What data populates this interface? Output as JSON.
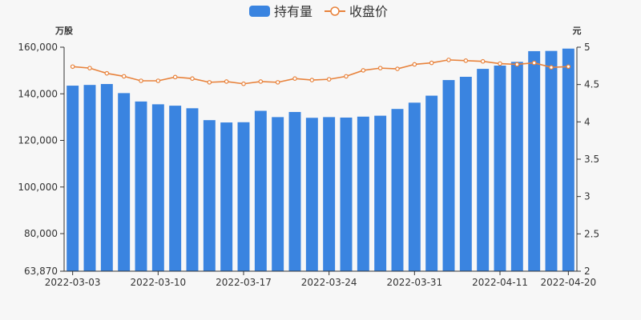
{
  "chart_data": {
    "type": "bar+line",
    "legend": [
      {
        "label": "持有量",
        "type": "bar",
        "color": "#3a84e0"
      },
      {
        "label": "收盘价",
        "type": "line",
        "color": "#e8823b"
      }
    ],
    "left_axis": {
      "unit": "万股",
      "min": 63870,
      "max": 160000,
      "ticks": [
        63870,
        80000,
        100000,
        120000,
        140000,
        160000
      ],
      "tick_labels": [
        "63,870",
        "80,000",
        "100,000",
        "120,000",
        "140,000",
        "160,000"
      ]
    },
    "right_axis": {
      "unit": "元",
      "min": 2,
      "max": 5,
      "ticks": [
        2,
        2.5,
        3,
        3.5,
        4,
        4.5,
        5
      ],
      "tick_labels": [
        "2",
        "2.5",
        "3",
        "3.5",
        "4",
        "4.5",
        "5"
      ]
    },
    "x_tick_labels": [
      "2022-03-03",
      "2022-03-10",
      "2022-03-17",
      "2022-03-24",
      "2022-03-31",
      "2022-04-11",
      "2022-04-20"
    ],
    "x_tick_indices": [
      0,
      5,
      10,
      15,
      20,
      25,
      29
    ],
    "series": [
      {
        "name": "持有量",
        "type": "bar",
        "values": [
          143500,
          143800,
          144200,
          140300,
          136700,
          135500,
          134900,
          133800,
          128700,
          127700,
          127800,
          132700,
          130000,
          132200,
          129700,
          130000,
          129800,
          130200,
          130600,
          133500,
          136200,
          139200,
          145900,
          147300,
          150700,
          152100,
          153700,
          158300,
          158400,
          159400
        ]
      },
      {
        "name": "收盘价",
        "type": "line",
        "values": [
          4.74,
          4.72,
          4.65,
          4.61,
          4.55,
          4.55,
          4.6,
          4.58,
          4.53,
          4.54,
          4.51,
          4.54,
          4.53,
          4.58,
          4.56,
          4.57,
          4.61,
          4.69,
          4.72,
          4.71,
          4.77,
          4.79,
          4.83,
          4.82,
          4.81,
          4.78,
          4.77,
          4.79,
          4.73,
          4.74
        ]
      }
    ]
  }
}
